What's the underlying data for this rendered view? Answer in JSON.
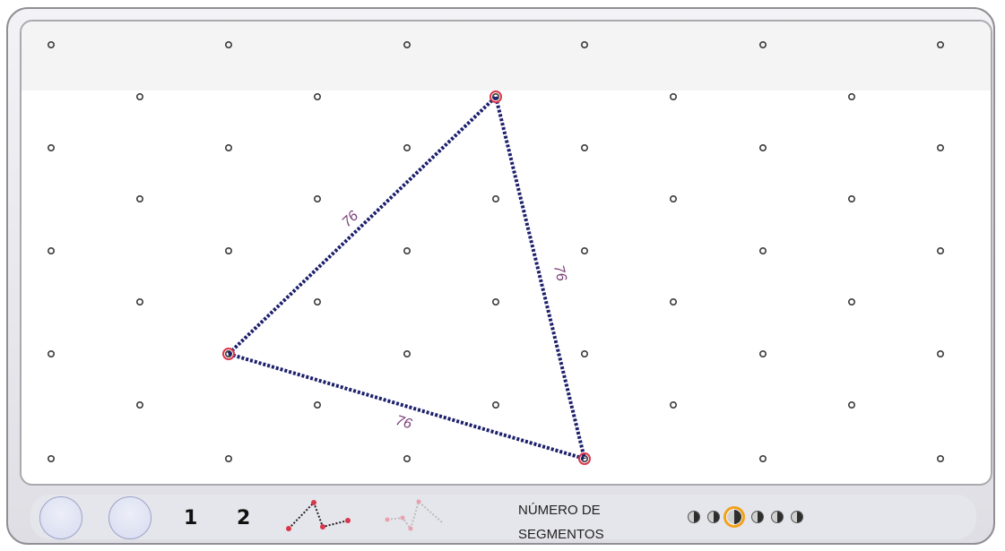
{
  "segment_lengths": [
    "76",
    "76",
    "76"
  ],
  "toolbar": {
    "num_1": "1",
    "num_2": "2",
    "label_line1": "NÚMERO DE",
    "label_line2": "SEGMENTOS",
    "segment_options_count": 6,
    "segment_selected_index": 2,
    "accent_color": "#f2a21b"
  },
  "icons": {
    "left_buttons": [
      "circle-button",
      "circle-button"
    ],
    "mode_active": "dotted-path-icon",
    "mode_inactive": "faded-dotted-path-icon"
  },
  "colors": {
    "segment": "#1c1f6b",
    "vertex": "#d9364a",
    "label": "#7a3d78",
    "grid_dot": "#3a3a3a"
  }
}
